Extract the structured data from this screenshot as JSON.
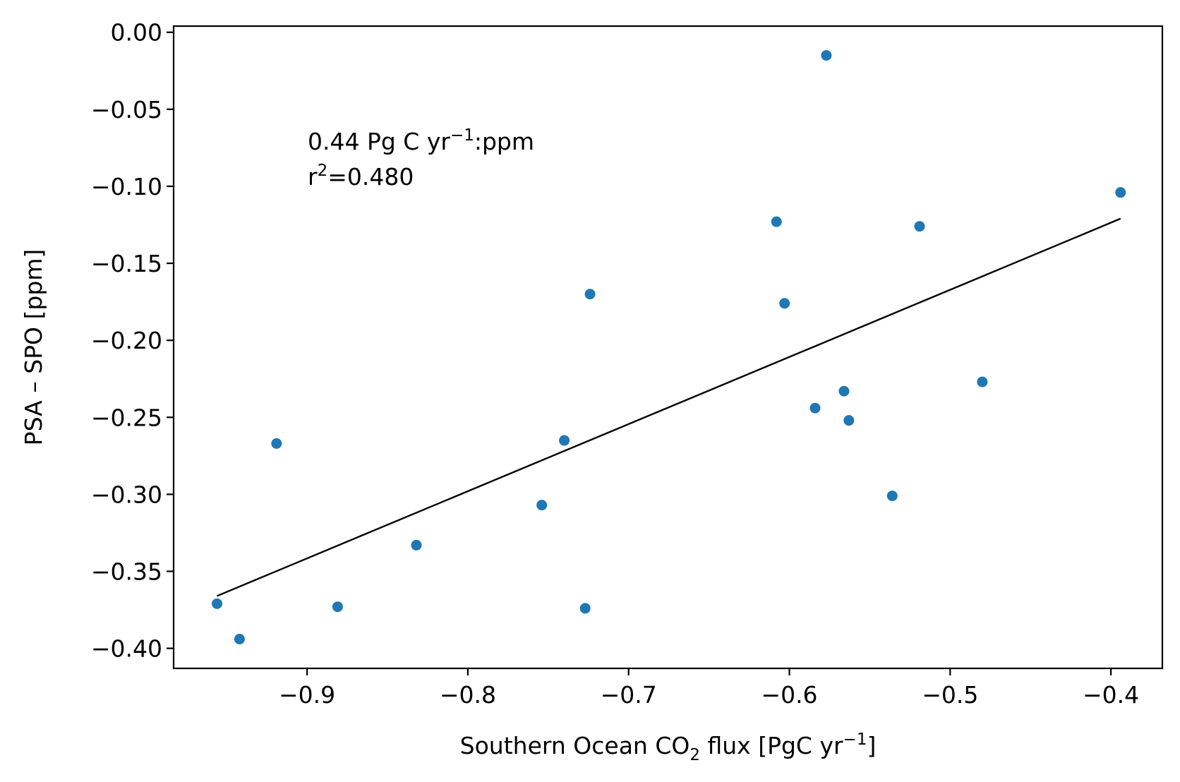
{
  "chart_data": {
    "type": "scatter",
    "title": "",
    "xlabel": {
      "pre": "Southern Ocean CO",
      "sub": "2",
      "mid": " flux [PgC yr",
      "sup": "−1",
      "post": "]"
    },
    "ylabel": "PSA – SPO [ppm]",
    "xlim": [
      -0.983,
      -0.368
    ],
    "ylim": [
      -0.413,
      0.004
    ],
    "xticks": [
      -0.9,
      -0.8,
      -0.7,
      -0.6,
      -0.5,
      -0.4
    ],
    "xtick_labels": [
      "−0.9",
      "−0.8",
      "−0.7",
      "−0.6",
      "−0.5",
      "−0.4"
    ],
    "yticks": [
      0.0,
      -0.05,
      -0.1,
      -0.15,
      -0.2,
      -0.25,
      -0.3,
      -0.35,
      -0.4
    ],
    "ytick_labels": [
      "0.00",
      "−0.05",
      "−0.10",
      "−0.15",
      "−0.20",
      "−0.25",
      "−0.30",
      "−0.35",
      "−0.40"
    ],
    "grid": false,
    "point_color": "#1f77b4",
    "line_color": "#000000",
    "points": [
      {
        "x": -0.956,
        "y": -0.371
      },
      {
        "x": -0.942,
        "y": -0.394
      },
      {
        "x": -0.919,
        "y": -0.267
      },
      {
        "x": -0.881,
        "y": -0.373
      },
      {
        "x": -0.832,
        "y": -0.333
      },
      {
        "x": -0.754,
        "y": -0.307
      },
      {
        "x": -0.74,
        "y": -0.265
      },
      {
        "x": -0.727,
        "y": -0.374
      },
      {
        "x": -0.724,
        "y": -0.17
      },
      {
        "x": -0.608,
        "y": -0.123
      },
      {
        "x": -0.603,
        "y": -0.176
      },
      {
        "x": -0.584,
        "y": -0.244
      },
      {
        "x": -0.577,
        "y": -0.015
      },
      {
        "x": -0.566,
        "y": -0.233
      },
      {
        "x": -0.563,
        "y": -0.252
      },
      {
        "x": -0.536,
        "y": -0.301
      },
      {
        "x": -0.519,
        "y": -0.126
      },
      {
        "x": -0.48,
        "y": -0.227
      },
      {
        "x": -0.394,
        "y": -0.104
      }
    ],
    "fit_line": {
      "x": [
        -0.956,
        -0.394
      ],
      "y": [
        -0.366,
        -0.121
      ]
    },
    "annotation": {
      "line1_pre": "0.44 Pg C yr",
      "line1_sup": "−1",
      "line1_post": ":ppm",
      "line2_pre": "r",
      "line2_sup": "2",
      "line2_post": "=0.480"
    }
  }
}
